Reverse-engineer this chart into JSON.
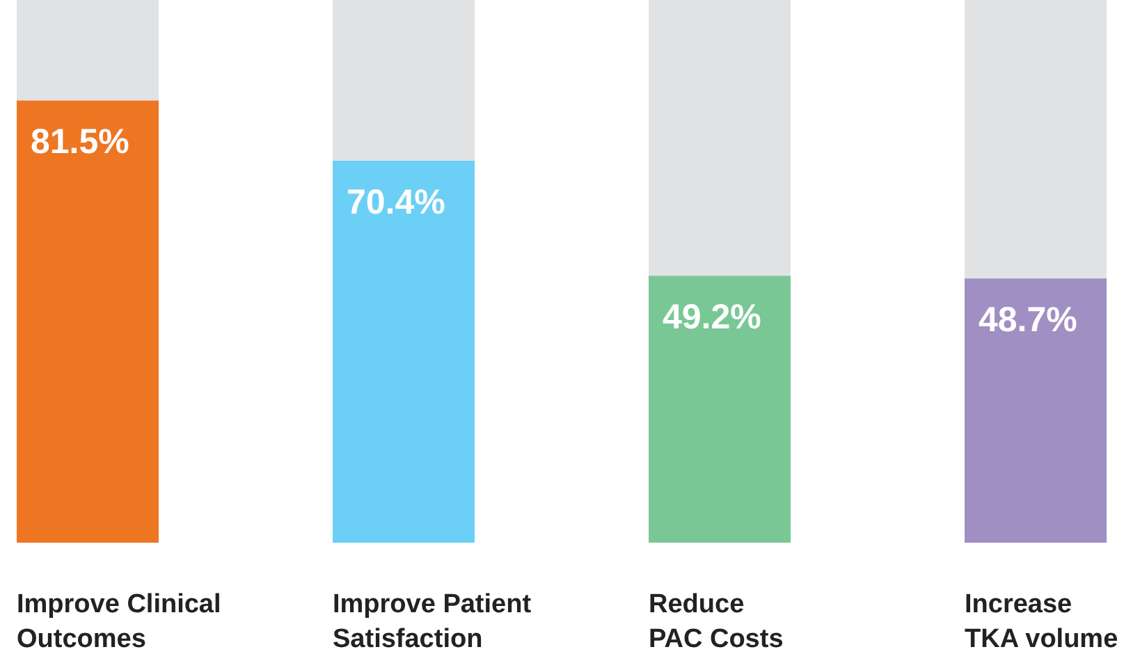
{
  "chart_data": {
    "type": "bar",
    "stacked": true,
    "categories": [
      "Improve Clinical\nOutcomes",
      "Improve Patient\nSatisfaction",
      "Reduce\nPAC Costs",
      "Increase\nTKA volume"
    ],
    "ylim": [
      0,
      100
    ],
    "series": [
      {
        "colors": [
          "#ee7623",
          "#6ccff6",
          "#79c795",
          "#a08fc2"
        ],
        "values": [
          81.5,
          70.4,
          49.2,
          48.7
        ],
        "value_labels": [
          "81.5%",
          "70.4%",
          "49.2%",
          "48.7%"
        ]
      },
      {
        "color": "#e1e2e4",
        "values": [
          18.5,
          29.6,
          50.8,
          51.3
        ]
      }
    ]
  }
}
